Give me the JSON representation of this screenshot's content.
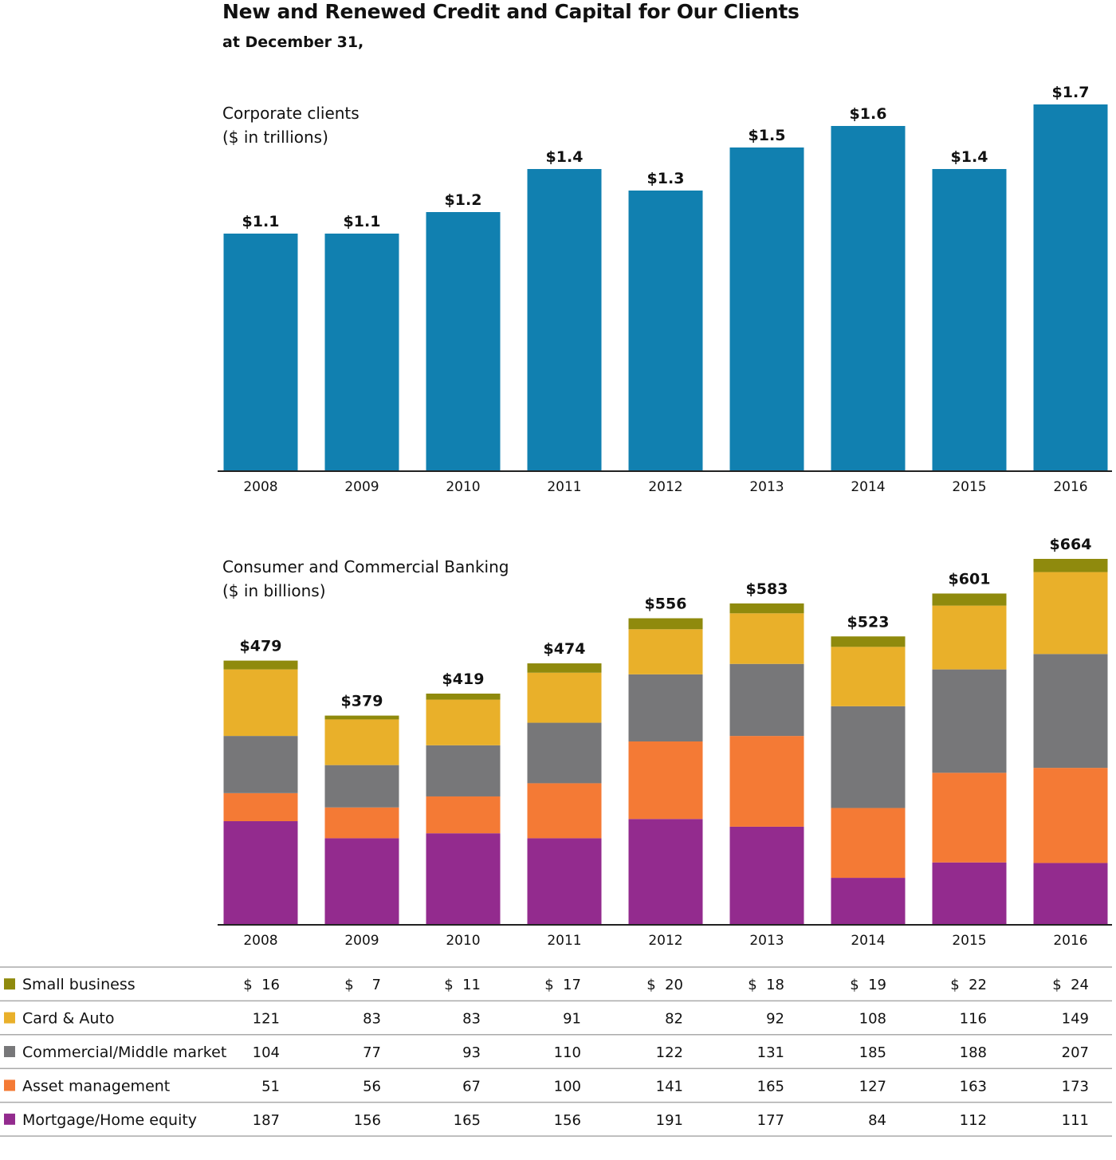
{
  "title": "New and Renewed Credit and Capital for Our Clients",
  "subtitle": "at December 31,",
  "colors": {
    "corporate_bar": "#1180b0",
    "small_business": "#8f8a0d",
    "card_auto": "#e9b02a",
    "commercial": "#777779",
    "asset_mgmt": "#f47a35",
    "mortgage": "#932b8e"
  },
  "chart_data": [
    {
      "type": "bar",
      "title_lines": [
        "Corporate clients",
        "($ in trillions)"
      ],
      "categories": [
        "2008",
        "2009",
        "2010",
        "2011",
        "2012",
        "2013",
        "2014",
        "2015",
        "2016"
      ],
      "values": [
        1.1,
        1.1,
        1.2,
        1.4,
        1.3,
        1.5,
        1.6,
        1.4,
        1.7
      ],
      "data_labels": [
        "$1.1",
        "$1.1",
        "$1.2",
        "$1.4",
        "$1.3",
        "$1.5",
        "$1.6",
        "$1.4",
        "$1.7"
      ],
      "ylim": [
        0,
        1.7
      ],
      "grid": false
    },
    {
      "type": "bar",
      "stacked": true,
      "title_lines": [
        "Consumer and Commercial Banking",
        "($ in billions)"
      ],
      "categories": [
        "2008",
        "2009",
        "2010",
        "2011",
        "2012",
        "2013",
        "2014",
        "2015",
        "2016"
      ],
      "totals": [
        479,
        379,
        419,
        474,
        556,
        583,
        523,
        601,
        664
      ],
      "total_labels": [
        "$479",
        "$379",
        "$419",
        "$474",
        "$556",
        "$583",
        "$523",
        "$601",
        "$664"
      ],
      "ylim": [
        0,
        664
      ],
      "grid": false,
      "series": [
        {
          "name": "Mortgage/Home equity",
          "color_key": "mortgage",
          "values": [
            187,
            156,
            165,
            156,
            191,
            177,
            84,
            112,
            111
          ]
        },
        {
          "name": "Asset management",
          "color_key": "asset_mgmt",
          "values": [
            51,
            56,
            67,
            100,
            141,
            165,
            127,
            163,
            173
          ]
        },
        {
          "name": "Commercial/Middle market",
          "color_key": "commercial",
          "values": [
            104,
            77,
            93,
            110,
            122,
            131,
            185,
            188,
            207
          ]
        },
        {
          "name": "Card & Auto",
          "color_key": "card_auto",
          "values": [
            121,
            83,
            83,
            91,
            82,
            92,
            108,
            116,
            149
          ]
        },
        {
          "name": "Small business",
          "color_key": "small_business",
          "values": [
            16,
            7,
            11,
            17,
            20,
            18,
            19,
            22,
            24
          ]
        }
      ]
    }
  ],
  "table": {
    "rows": [
      {
        "label": "Small business",
        "color_key": "small_business",
        "cells": [
          "$  16",
          "$    7",
          "$  11",
          "$  17",
          "$  20",
          "$  18",
          "$  19",
          "$  22",
          "$  24"
        ]
      },
      {
        "label": "Card & Auto",
        "color_key": "card_auto",
        "cells": [
          "121",
          "83",
          "83",
          "91",
          "82",
          "92",
          "108",
          "116",
          "149"
        ]
      },
      {
        "label": "Commercial/Middle market",
        "color_key": "commercial",
        "cells": [
          "104",
          "77",
          "93",
          "110",
          "122",
          "131",
          "185",
          "188",
          "207"
        ]
      },
      {
        "label": "Asset management",
        "color_key": "asset_mgmt",
        "cells": [
          "51",
          "56",
          "67",
          "100",
          "141",
          "165",
          "127",
          "163",
          "173"
        ]
      },
      {
        "label": "Mortgage/Home equity",
        "color_key": "mortgage",
        "cells": [
          "187",
          "156",
          "165",
          "156",
          "191",
          "177",
          "84",
          "112",
          "111"
        ]
      }
    ]
  }
}
